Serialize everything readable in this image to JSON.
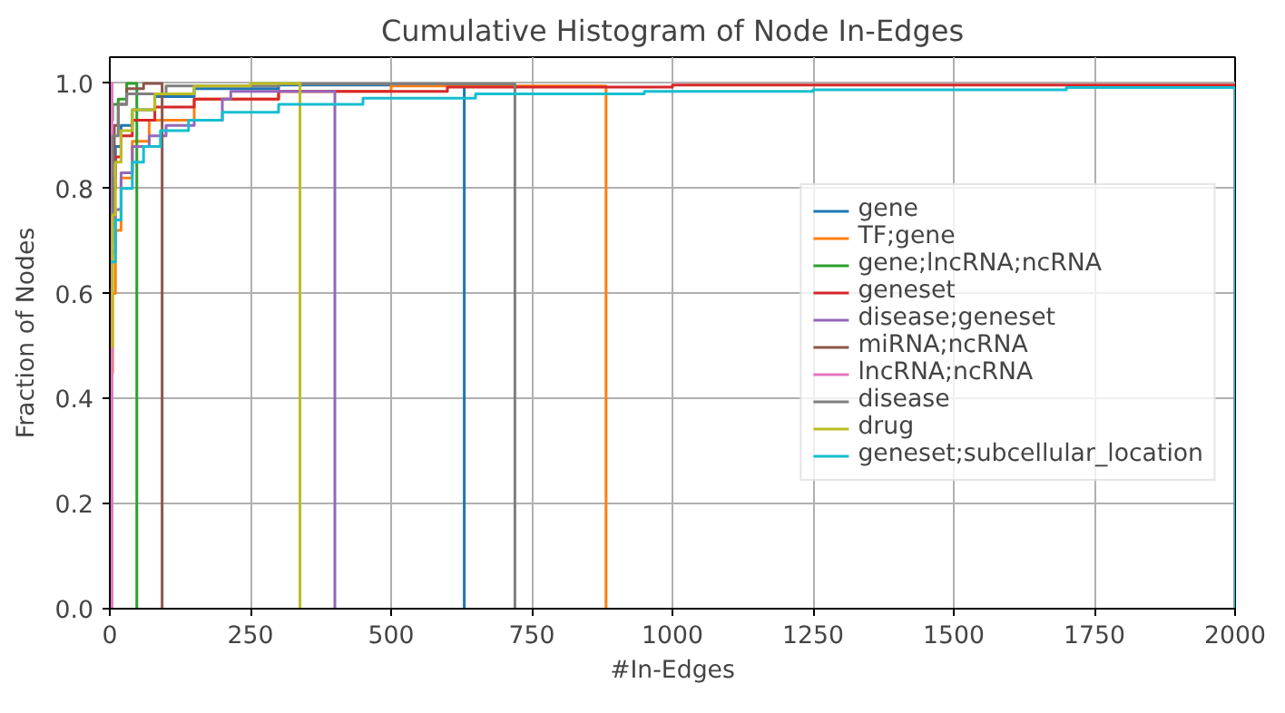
{
  "chart_data": {
    "type": "step",
    "title": "Cumulative Histogram of Node In-Edges",
    "xlabel": "#In-Edges",
    "ylabel": "Fraction of Nodes",
    "xlim": [
      0,
      2000
    ],
    "ylim": [
      0,
      1.05
    ],
    "xticks": [
      0,
      250,
      500,
      750,
      1000,
      1250,
      1500,
      1750,
      2000
    ],
    "yticks": [
      {
        "value": 0,
        "label": "0.0"
      },
      {
        "value": 0.2,
        "label": "0.2"
      },
      {
        "value": 0.4,
        "label": "0.4"
      },
      {
        "value": 0.6,
        "label": "0.6"
      },
      {
        "value": 0.8,
        "label": "0.8"
      },
      {
        "value": 1,
        "label": "1.0"
      }
    ],
    "grid": true,
    "legend": "right",
    "line_style": "solid",
    "series": [
      {
        "name": "gene",
        "color": "#1f77b4",
        "x": [
          0,
          5,
          10,
          20,
          40,
          80,
          150,
          300,
          630
        ],
        "values": [
          0.7,
          0.82,
          0.88,
          0.92,
          0.95,
          0.975,
          0.99,
          0.997,
          0
        ]
      },
      {
        "name": "TF;gene",
        "color": "#ff7f0e",
        "x": [
          0,
          5,
          10,
          20,
          40,
          70,
          150,
          300,
          500,
          882
        ],
        "values": [
          0.45,
          0.6,
          0.72,
          0.82,
          0.89,
          0.93,
          0.97,
          0.985,
          0.995,
          0
        ]
      },
      {
        "name": "gene;lncRNA;ncRNA",
        "color": "#2ca02c",
        "x": [
          0,
          5,
          15,
          30,
          48
        ],
        "values": [
          0.93,
          0.96,
          0.97,
          1.0,
          0
        ]
      },
      {
        "name": "geneset",
        "color": "#d62728",
        "x": [
          0,
          5,
          10,
          20,
          40,
          80,
          150,
          300,
          600,
          1000,
          2000
        ],
        "values": [
          0.73,
          0.8,
          0.86,
          0.9,
          0.93,
          0.955,
          0.97,
          0.985,
          0.993,
          0.997,
          0
        ]
      },
      {
        "name": "disease;geneset",
        "color": "#9467bd",
        "x": [
          0,
          10,
          20,
          40,
          70,
          100,
          150,
          200,
          215,
          400
        ],
        "values": [
          0.68,
          0.76,
          0.83,
          0.88,
          0.9,
          0.92,
          0.93,
          0.97,
          0.985,
          0
        ]
      },
      {
        "name": "miRNA;ncRNA",
        "color": "#8c564b",
        "x": [
          0,
          3,
          8,
          15,
          30,
          60,
          93
        ],
        "values": [
          0.7,
          0.85,
          0.92,
          0.96,
          0.99,
          1.0,
          0
        ]
      },
      {
        "name": "lncRNA;ncRNA",
        "color": "#e377c2",
        "x": [
          0,
          2,
          4
        ],
        "values": [
          0.9,
          1.0,
          0
        ]
      },
      {
        "name": "disease",
        "color": "#7f7f7f",
        "x": [
          0,
          5,
          15,
          30,
          100,
          300,
          720
        ],
        "values": [
          0.75,
          0.9,
          0.96,
          0.98,
          0.995,
          0.999,
          0
        ]
      },
      {
        "name": "drug",
        "color": "#bcbd22",
        "x": [
          0,
          5,
          10,
          20,
          40,
          80,
          150,
          250,
          338
        ],
        "values": [
          0.5,
          0.75,
          0.85,
          0.91,
          0.95,
          0.98,
          0.995,
          1.0,
          0
        ]
      },
      {
        "name": "geneset;subcellular_location",
        "color": "#17becf",
        "x": [
          0,
          10,
          20,
          40,
          60,
          90,
          140,
          200,
          300,
          450,
          650,
          950,
          1250,
          1700,
          2000
        ],
        "values": [
          0.66,
          0.74,
          0.8,
          0.85,
          0.88,
          0.91,
          0.93,
          0.945,
          0.96,
          0.972,
          0.98,
          0.985,
          0.988,
          0.992,
          0
        ]
      }
    ]
  }
}
